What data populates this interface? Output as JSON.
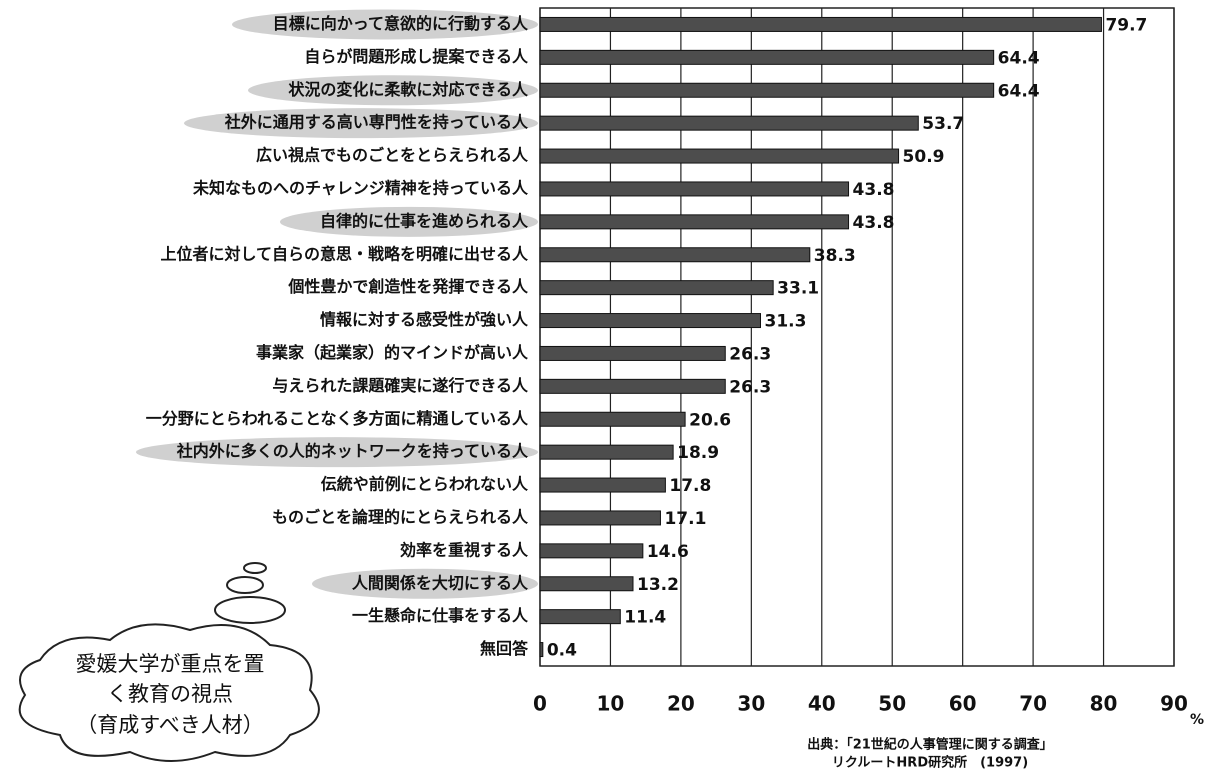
{
  "chart_data": {
    "type": "bar",
    "orientation": "horizontal",
    "categories": [
      "目標に向かって意欲的に行動する人",
      "自らが問題形成し提案できる人",
      "状況の変化に柔軟に対応できる人",
      "社外に通用する高い専門性を持っている人",
      "広い視点でものごとをとらえられる人",
      "未知なものへのチャレンジ精神を持っている人",
      "自律的に仕事を進められる人",
      "上位者に対して自らの意思・戦略を明確に出せる人",
      "個性豊かで創造性を発揮できる人",
      "情報に対する感受性が強い人",
      "事業家（起業家）的マインドが高い人",
      "与えられた課題確実に遂行できる人",
      "一分野にとらわれることなく多方面に精通している人",
      "社内外に多くの人的ネットワークを持っている人",
      "伝統や前例にとらわれない人",
      "ものごとを論理的にとらえられる人",
      "効率を重視する人",
      "人間関係を大切にする人",
      "一生懸命に仕事をする人",
      "無回答"
    ],
    "values": [
      79.7,
      64.4,
      64.4,
      53.7,
      50.9,
      43.8,
      43.8,
      38.3,
      33.1,
      31.3,
      26.3,
      26.3,
      20.6,
      18.9,
      17.8,
      17.1,
      14.6,
      13.2,
      11.4,
      0.4
    ],
    "highlighted": [
      true,
      false,
      true,
      true,
      false,
      false,
      true,
      false,
      false,
      false,
      false,
      false,
      false,
      true,
      false,
      false,
      false,
      true,
      false,
      false
    ],
    "color": "#4d4d4d",
    "xlim": [
      0,
      90
    ],
    "xticks": [
      0,
      10,
      20,
      30,
      40,
      50,
      60,
      70,
      80,
      90
    ],
    "x_unit": "%",
    "grid": true,
    "annotation": [
      "愛媛大学が重点を置",
      "く教育の視点",
      "（育成すべき人材）"
    ],
    "source": [
      "出典：「21世紀の人事管理に関する調査」",
      "リクルートHRD研究所　(1997)"
    ]
  }
}
